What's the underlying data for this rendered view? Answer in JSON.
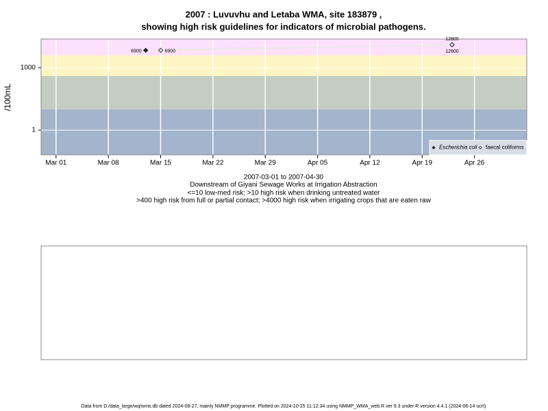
{
  "chart_data": {
    "type": "scatter",
    "title": "2007 : Luvuvhu and Letaba WMA, site 183879 ,",
    "subtitle": "showing high risk guidelines for indicators of microbial pathogens.",
    "y_label": "/100mL",
    "x_label": "2007-03-01 to 2007-04-30",
    "notes": [
      "Downstream of Giyani Sewage Works at Irrigation Abstraction",
      "<=10 low-med risk; >10 high risk when drinking untreated water",
      ">400 high risk from full or partial contact; >4000 high risk when irrigating crops that are eaten raw"
    ],
    "footer": "Data from D:/data_large/wq/wms.db dated 2024-08-27, mainly NMMP programme. Plotted on 2024-10-25 11:12:34 using NMMP_WMA_web.R ver 9.3 under R version 4.4.1 (2024-06-14 ucrt)",
    "log_y": true,
    "grid": true,
    "legend_position": "bottom-right",
    "ylim": [
      0.065,
      24000
    ],
    "yticks": [
      1,
      1000
    ],
    "xlim": [
      "2007-02-27",
      "2007-05-03"
    ],
    "xticks": [
      {
        "value": "2007-03-01",
        "label": "Mar 01"
      },
      {
        "value": "2007-03-08",
        "label": "Mar 08"
      },
      {
        "value": "2007-03-15",
        "label": "Mar 15"
      },
      {
        "value": "2007-03-22",
        "label": "Mar 22"
      },
      {
        "value": "2007-03-29",
        "label": "Mar 29"
      },
      {
        "value": "2007-04-05",
        "label": "Apr 05"
      },
      {
        "value": "2007-04-12",
        "label": "Apr 12"
      },
      {
        "value": "2007-04-19",
        "label": "Apr 19"
      },
      {
        "value": "2007-04-26",
        "label": "Apr 26"
      }
    ],
    "band_limits": [
      10,
      400,
      4000
    ],
    "band_colors": [
      "#a3b4cc",
      "#c4cdc2",
      "#fdf5c4",
      "#fde0fb"
    ],
    "series": [
      {
        "name": "Escherichia coli",
        "color": "#222222",
        "filled": true,
        "x": [
          "2007-03-13",
          "2007-04-23"
        ],
        "values": [
          6900,
          12800
        ]
      },
      {
        "name": "faecal coliforms",
        "color": "#222222",
        "filled": false,
        "x": [
          "2007-03-15",
          "2007-04-23"
        ],
        "values": [
          6900,
          12800
        ]
      }
    ]
  }
}
